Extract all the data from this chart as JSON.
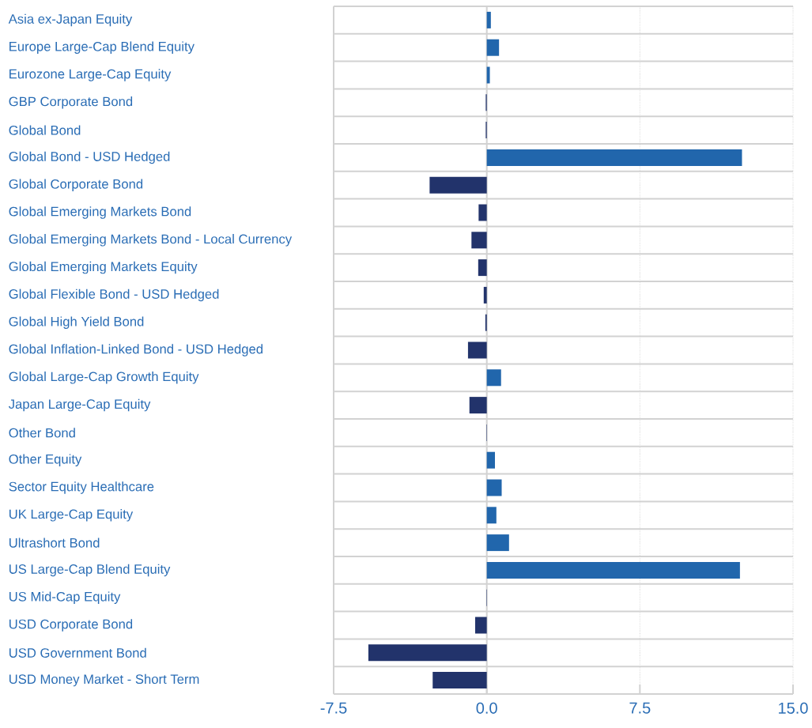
{
  "chart_data": {
    "type": "bar",
    "orientation": "horizontal",
    "categories": [
      "Asia ex-Japan Equity",
      "Europe Large-Cap Blend Equity",
      "Eurozone Large-Cap Equity",
      "GBP Corporate Bond",
      "Global Bond",
      "Global Bond - USD Hedged",
      "Global Corporate Bond",
      "Global Emerging Markets Bond",
      "Global Emerging Markets Bond - Local Currency",
      "Global Emerging Markets Equity",
      "Global Flexible Bond - USD Hedged",
      "Global High Yield Bond",
      "Global Inflation-Linked Bond - USD Hedged",
      "Global Large-Cap Growth Equity",
      "Japan Large-Cap Equity",
      "Other Bond",
      "Other Equity",
      "Sector Equity Healthcare",
      "UK Large-Cap Equity",
      "Ultrashort Bond",
      "US Large-Cap Blend Equity",
      "US Mid-Cap Equity",
      "USD Corporate Bond",
      "USD Government Bond",
      "USD Money Market - Short Term"
    ],
    "values": [
      0.2,
      0.6,
      0.15,
      -0.05,
      -0.05,
      12.5,
      -2.8,
      -0.4,
      -0.75,
      -0.42,
      -0.15,
      -0.07,
      -0.92,
      0.7,
      -0.85,
      -0.02,
      0.4,
      0.73,
      0.47,
      1.09,
      12.4,
      -0.02,
      -0.57,
      -5.8,
      -2.65
    ],
    "colors": [
      "#2166ac",
      "#2166ac",
      "#2166ac",
      "#22336b",
      "#22336b",
      "#2166ac",
      "#22336b",
      "#22336b",
      "#22336b",
      "#22336b",
      "#22336b",
      "#22336b",
      "#22336b",
      "#2166ac",
      "#22336b",
      "#22336b",
      "#2166ac",
      "#2166ac",
      "#2166ac",
      "#2166ac",
      "#2166ac",
      "#22336b",
      "#22336b",
      "#22336b",
      "#22336b"
    ],
    "xlim": [
      -7.5,
      15
    ],
    "xticks": [
      -7.5,
      {
        "value": 0,
        "label": "0.0"
      },
      7.5,
      {
        "value": 15,
        "label": "15.0"
      }
    ],
    "grid": true
  }
}
